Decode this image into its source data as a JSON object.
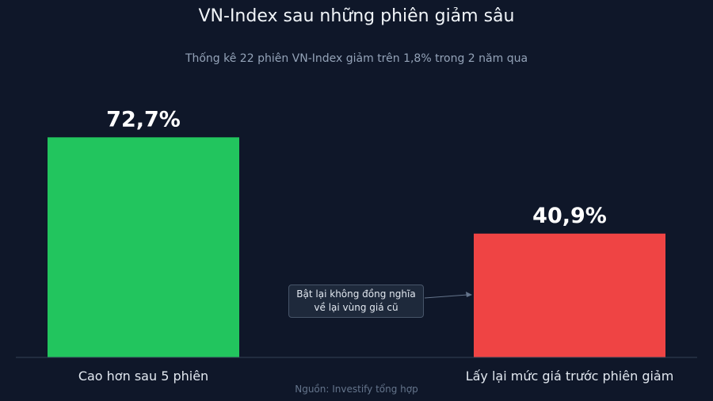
{
  "chart_data": {
    "type": "bar",
    "title": "VN-Index sau những phiên giảm sâu",
    "subtitle": "Thống kê 22 phiên VN-Index giảm trên 1,8% trong 2 năm qua",
    "categories": [
      "Cao hơn sau 5 phiên",
      "Lấy lại mức giá trước phiên giảm"
    ],
    "values": [
      72.7,
      40.9
    ],
    "value_labels": [
      "72,7%",
      "40,9%"
    ],
    "colors": [
      "#22c55e",
      "#ef4444"
    ],
    "ylim": [
      0,
      100
    ],
    "grid": false,
    "annotation": {
      "lines": [
        "Bật lại không đồng nghĩa",
        "về lại vùng giá cũ"
      ],
      "points_to": "Lấy lại mức giá trước phiên giảm"
    },
    "source": "Nguồn: Investify tổng hợp"
  }
}
